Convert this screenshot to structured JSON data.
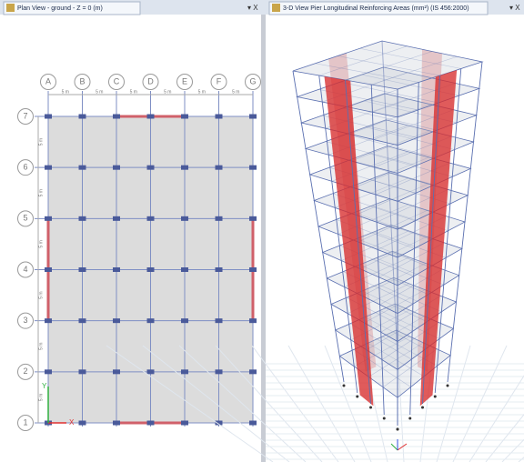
{
  "tabs": [
    {
      "title": "Plan View - ground - Z = 0 (m)",
      "controls": "▾ X"
    },
    {
      "title": "3-D View  Pier Longitudinal Reinforcing Areas (mm²)  (IS 456:2000)",
      "controls": "▾ X"
    }
  ],
  "plan": {
    "columns": [
      "A",
      "B",
      "C",
      "D",
      "E",
      "F",
      "G"
    ],
    "rows": [
      "1",
      "2",
      "3",
      "4",
      "5",
      "6",
      "7"
    ],
    "column_spacings": [
      "5 m",
      "5 m",
      "5 m",
      "5 m",
      "5 m",
      "5 m"
    ],
    "row_spacings": [
      "5 m",
      "5 m",
      "5 m",
      "5 m",
      "5 m",
      "5 m"
    ],
    "axes": {
      "x": "X",
      "y": "Y"
    }
  }
}
